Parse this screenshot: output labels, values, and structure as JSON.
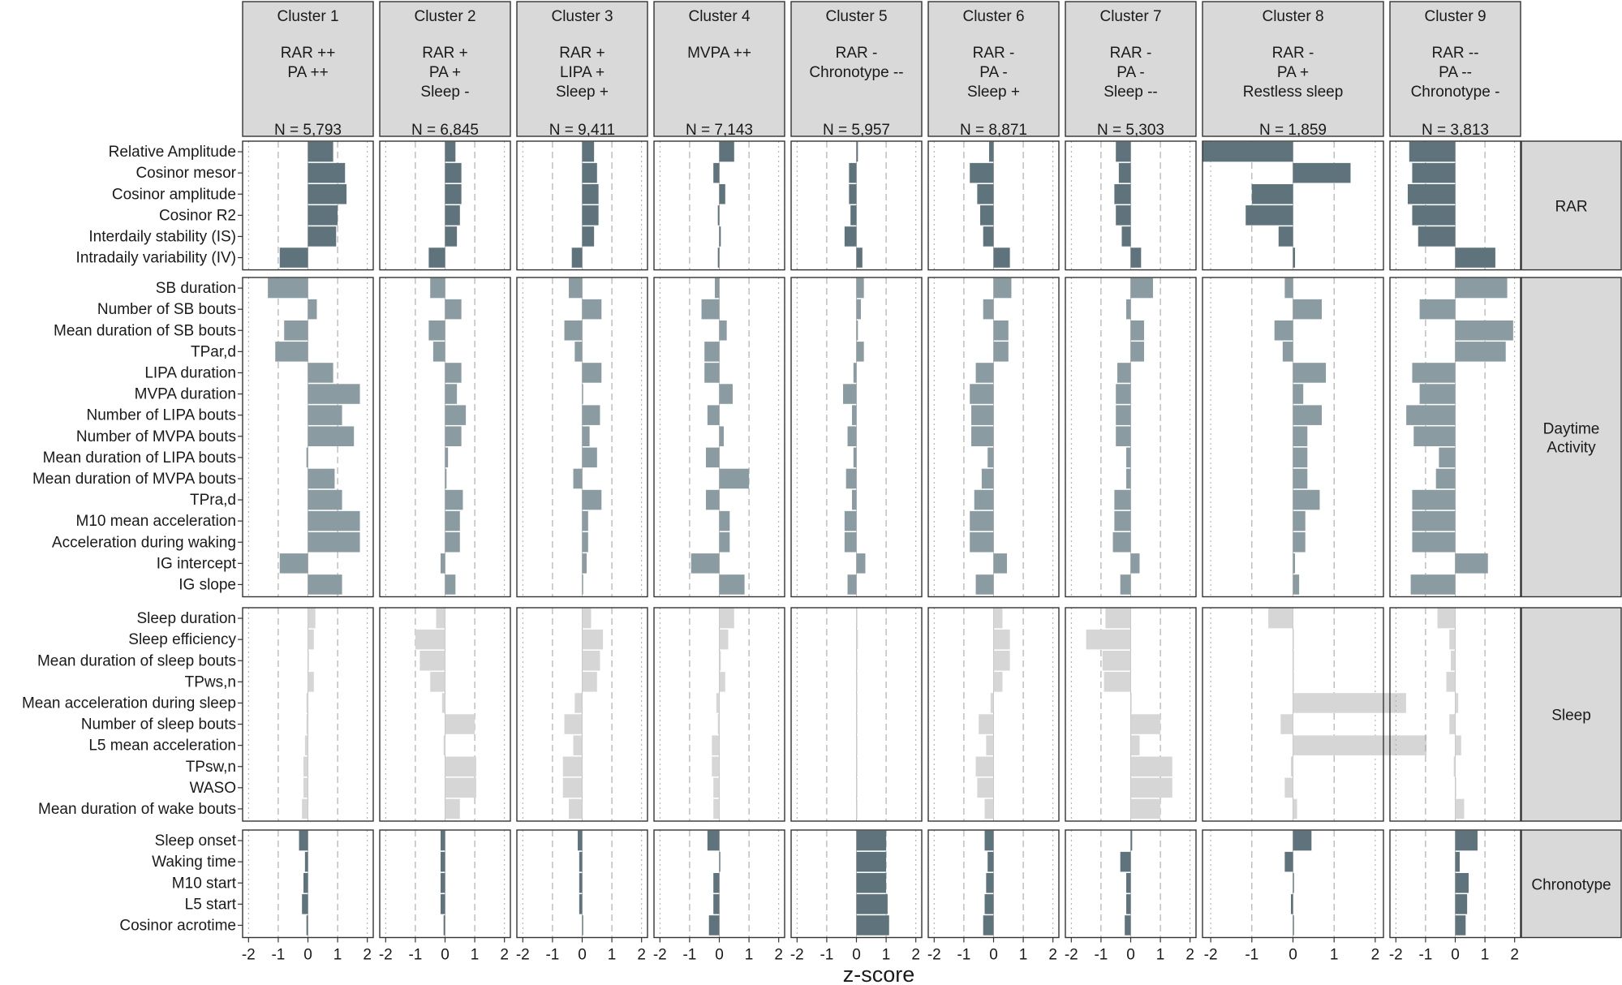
{
  "chart_data": {
    "type": "bar",
    "orientation": "horizontal",
    "xlabel": "z-score",
    "xlim": [
      -2.2,
      2.2
    ],
    "xticks": [
      -2,
      -1,
      0,
      1,
      2
    ],
    "xtick_labels": [
      "-2",
      "-1",
      "0",
      "1",
      "2"
    ],
    "group_colors": {
      "RAR": "#5e737c",
      "Daytime Activity": "#8a9ca1",
      "Sleep": "#d6d6d6",
      "Chronotype": "#5e737c"
    },
    "clusters": [
      {
        "title": "Cluster 1",
        "desc": [
          "RAR ++",
          "PA ++"
        ],
        "n": "N = 5,793"
      },
      {
        "title": "Cluster 2",
        "desc": [
          "RAR +",
          "PA +",
          "Sleep -"
        ],
        "n": "N = 6,845"
      },
      {
        "title": "Cluster 3",
        "desc": [
          "RAR +",
          "LIPA +",
          "Sleep +"
        ],
        "n": "N = 9,411"
      },
      {
        "title": "Cluster 4",
        "desc": [
          "MVPA ++"
        ],
        "n": "N = 7,143"
      },
      {
        "title": "Cluster 5",
        "desc": [
          "RAR -",
          "Chronotype --"
        ],
        "n": "N = 5,957"
      },
      {
        "title": "Cluster 6",
        "desc": [
          "RAR -",
          "PA -",
          "Sleep +"
        ],
        "n": "N = 8,871"
      },
      {
        "title": "Cluster 7",
        "desc": [
          "RAR -",
          "PA -",
          "Sleep --"
        ],
        "n": "N = 5,303"
      },
      {
        "title": "Cluster 8",
        "desc": [
          "RAR -",
          "PA +",
          "Restless sleep"
        ],
        "n": "N = 1,859"
      },
      {
        "title": "Cluster 9",
        "desc": [
          "RAR --",
          "PA --",
          "Chronotype -"
        ],
        "n": "N = 3,813"
      }
    ],
    "groups": [
      {
        "name": "RAR",
        "label": [
          "RAR"
        ],
        "variables": [
          "Relative Amplitude",
          "Cosinor mesor",
          "Cosinor amplitude",
          "Cosinor R2",
          "Interdaily stability (IS)",
          "Intradaily variability (IV)"
        ],
        "values": [
          [
            0.85,
            0.35,
            0.4,
            0.5,
            0.05,
            -0.15,
            -0.5,
            -2.2,
            -1.55
          ],
          [
            1.25,
            0.55,
            0.5,
            -0.2,
            -0.25,
            -0.8,
            -0.4,
            1.4,
            -1.45
          ],
          [
            1.3,
            0.55,
            0.55,
            0.2,
            -0.25,
            -0.55,
            -0.55,
            -1.0,
            -1.6
          ],
          [
            1.0,
            0.5,
            0.55,
            -0.05,
            -0.2,
            -0.45,
            -0.5,
            -1.15,
            -1.45
          ],
          [
            0.95,
            0.4,
            0.4,
            0.05,
            -0.4,
            -0.35,
            -0.3,
            -0.35,
            -1.25
          ],
          [
            -0.95,
            -0.55,
            -0.35,
            -0.05,
            0.2,
            0.55,
            0.35,
            0.05,
            1.35
          ]
        ]
      },
      {
        "name": "Daytime Activity",
        "label": [
          "Daytime",
          "Activity"
        ],
        "variables": [
          "SB duration",
          "Number of SB bouts",
          "Mean duration of SB bouts",
          "TPar,d",
          "LIPA duration",
          "MVPA duration",
          "Number of LIPA bouts",
          "Number of MVPA bouts",
          "Mean duration of LIPA bouts",
          "Mean duration of MVPA bouts",
          "TPra,d",
          "M10 mean acceleration",
          "Acceleration during waking",
          "IG intercept",
          "IG slope"
        ],
        "values": [
          [
            -1.35,
            -0.5,
            -0.45,
            -0.15,
            0.25,
            0.6,
            0.75,
            -0.2,
            1.75
          ],
          [
            0.3,
            0.55,
            0.65,
            -0.6,
            0.15,
            -0.35,
            -0.15,
            0.7,
            -1.2
          ],
          [
            -0.8,
            -0.55,
            -0.6,
            0.25,
            0.05,
            0.5,
            0.45,
            -0.45,
            1.95
          ],
          [
            -1.1,
            -0.4,
            -0.25,
            -0.5,
            0.25,
            0.5,
            0.45,
            -0.25,
            1.7
          ],
          [
            0.85,
            0.55,
            0.65,
            -0.5,
            -0.1,
            -0.6,
            -0.45,
            0.8,
            -1.45
          ],
          [
            1.75,
            0.4,
            0.0,
            0.45,
            -0.45,
            -0.8,
            -0.5,
            0.25,
            -1.2
          ],
          [
            1.15,
            0.7,
            0.6,
            -0.4,
            -0.15,
            -0.75,
            -0.5,
            0.7,
            -1.65
          ],
          [
            1.55,
            0.55,
            0.25,
            0.15,
            -0.3,
            -0.75,
            -0.5,
            0.35,
            -1.4
          ],
          [
            -0.05,
            0.1,
            0.5,
            -0.45,
            -0.1,
            -0.2,
            -0.15,
            0.35,
            -0.55
          ],
          [
            0.9,
            0.05,
            -0.3,
            1.0,
            -0.35,
            -0.4,
            -0.15,
            0.35,
            -0.65
          ],
          [
            1.15,
            0.6,
            0.65,
            -0.45,
            -0.15,
            -0.65,
            -0.55,
            0.65,
            -1.45
          ],
          [
            1.75,
            0.5,
            0.2,
            0.35,
            -0.4,
            -0.8,
            -0.55,
            0.3,
            -1.45
          ],
          [
            1.75,
            0.5,
            0.2,
            0.35,
            -0.4,
            -0.8,
            -0.6,
            0.3,
            -1.45
          ],
          [
            -0.95,
            -0.15,
            0.15,
            -0.95,
            0.3,
            0.45,
            0.3,
            0.05,
            1.1
          ],
          [
            1.15,
            0.35,
            0.0,
            0.85,
            -0.3,
            -0.6,
            -0.35,
            0.15,
            -1.5
          ]
        ]
      },
      {
        "name": "Sleep",
        "label": [
          "Sleep"
        ],
        "variables": [
          "Sleep duration",
          "Sleep efficiency",
          "Mean duration of sleep bouts",
          "TPws,n",
          "Mean acceleration during sleep",
          "Number of sleep bouts",
          "L5 mean acceleration",
          "TPsw,n",
          "WASO",
          "Mean duration of wake bouts"
        ],
        "values": [
          [
            0.25,
            -0.3,
            0.3,
            0.5,
            0.0,
            0.3,
            -0.85,
            -0.6,
            -0.6
          ],
          [
            0.2,
            -1.0,
            0.7,
            0.3,
            0.05,
            0.55,
            -1.5,
            0.0,
            -0.2
          ],
          [
            0.0,
            -0.85,
            0.6,
            0.05,
            0.0,
            0.55,
            -0.95,
            0.0,
            -0.15
          ],
          [
            0.2,
            -0.5,
            0.5,
            0.2,
            0.0,
            0.3,
            -0.9,
            0.0,
            -0.3
          ],
          [
            -0.05,
            -0.1,
            -0.25,
            -0.1,
            0.0,
            -0.1,
            0.0,
            2.75,
            0.1
          ],
          [
            -0.05,
            1.0,
            -0.6,
            -0.05,
            0.0,
            -0.5,
            1.0,
            -0.3,
            -0.2
          ],
          [
            -0.1,
            -0.05,
            -0.3,
            -0.25,
            0.0,
            -0.25,
            0.3,
            3.25,
            0.2
          ],
          [
            -0.15,
            1.05,
            -0.65,
            -0.25,
            0.0,
            -0.6,
            1.4,
            -0.05,
            -0.05
          ],
          [
            -0.15,
            1.05,
            -0.65,
            -0.2,
            0.0,
            -0.55,
            1.4,
            -0.2,
            0.0
          ],
          [
            -0.2,
            0.5,
            -0.45,
            -0.2,
            0.0,
            -0.3,
            1.0,
            0.1,
            0.3
          ]
        ]
      },
      {
        "name": "Chronotype",
        "label": [
          "Chronotype"
        ],
        "variables": [
          "Sleep onset",
          "Waking time",
          "M10 start",
          "L5 start",
          "Cosinor acrotime"
        ],
        "values": [
          [
            -0.3,
            -0.15,
            -0.15,
            -0.4,
            1.0,
            -0.3,
            0.05,
            0.45,
            0.75
          ],
          [
            -0.1,
            -0.15,
            -0.1,
            0.0,
            1.0,
            -0.2,
            -0.35,
            -0.2,
            0.15
          ],
          [
            -0.15,
            -0.15,
            -0.1,
            -0.2,
            1.0,
            -0.25,
            -0.15,
            0.0,
            0.45
          ],
          [
            -0.2,
            -0.15,
            -0.1,
            -0.2,
            1.05,
            -0.3,
            -0.15,
            -0.05,
            0.4
          ],
          [
            -0.05,
            -0.05,
            0.0,
            -0.35,
            1.1,
            -0.35,
            -0.2,
            0.0,
            0.35
          ]
        ]
      }
    ]
  }
}
